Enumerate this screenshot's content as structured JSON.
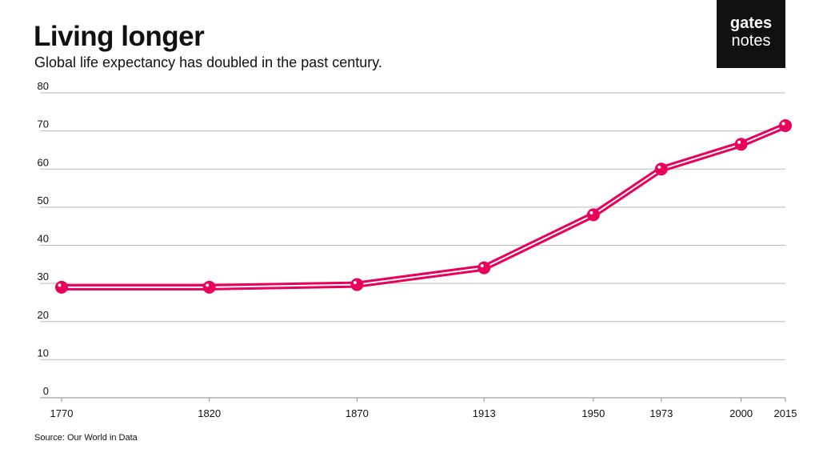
{
  "header": {
    "title": "Living longer",
    "subtitle": "Global life expectancy has doubled in the past century."
  },
  "logo": {
    "line1": "gates",
    "line2": "notes"
  },
  "footer": {
    "source": "Source: Our World in Data"
  },
  "colors": {
    "series": "#e8005a",
    "grid": "#bbbbbb",
    "text": "#111111",
    "logo_bg": "#111111"
  },
  "chart_data": {
    "type": "line",
    "title": "Living longer",
    "subtitle": "Global life expectancy has doubled in the past century.",
    "xlabel": "",
    "ylabel": "",
    "x": [
      1770,
      1820,
      1870,
      1913,
      1950,
      1973,
      2000,
      2015
    ],
    "x_tick_labels": [
      "1770",
      "1820",
      "1870",
      "1913",
      "1950",
      "1973",
      "2000",
      "2015"
    ],
    "series": [
      {
        "values": [
          29,
          29,
          29.7,
          34.1,
          48,
          60,
          66.5,
          71.4
        ]
      }
    ],
    "xlim": [
      1770,
      2015
    ],
    "ylim": [
      0,
      80
    ],
    "y_ticks": [
      0,
      10,
      20,
      30,
      40,
      50,
      60,
      70,
      80
    ],
    "grid": true,
    "legend": "none"
  }
}
